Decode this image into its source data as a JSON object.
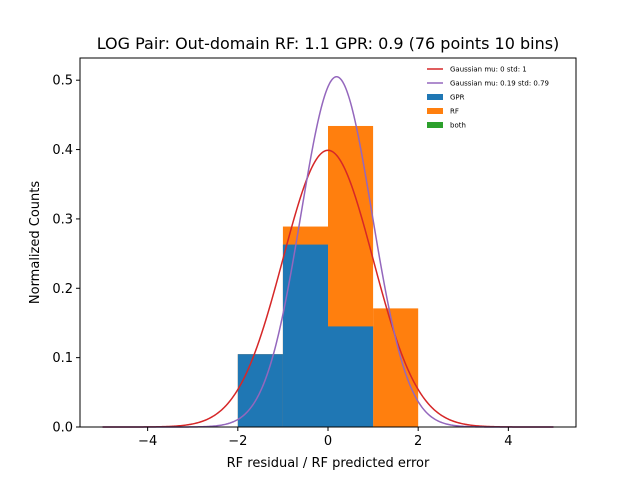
{
  "chart_data": {
    "type": "histogram",
    "title": "LOG Pair: Out-domain RF: 1.1 GPR: 0.9 (76 points 10 bins)",
    "xlabel": "RF residual / RF predicted error",
    "ylabel": "Normalized Counts",
    "xlim": [
      -5.5,
      5.5
    ],
    "ylim": [
      0,
      0.532
    ],
    "xticks": [
      -4,
      -2,
      0,
      2,
      4
    ],
    "xtick_labels": [
      "−4",
      "−2",
      "0",
      "2",
      "4"
    ],
    "yticks": [
      0.0,
      0.1,
      0.2,
      0.3,
      0.4,
      0.5
    ],
    "ytick_labels": [
      "0.0",
      "0.1",
      "0.2",
      "0.3",
      "0.4",
      "0.5"
    ],
    "grid": false,
    "legend_position": "upper-right",
    "histograms": [
      {
        "name": "RF",
        "color": "#ff7f0e",
        "bins": [
          {
            "x0": -2,
            "x1": -1,
            "height": 0.105
          },
          {
            "x0": -1,
            "x1": 0,
            "height": 0.289
          },
          {
            "x0": 0,
            "x1": 1,
            "height": 0.434
          },
          {
            "x0": 1,
            "x1": 2,
            "height": 0.171
          }
        ]
      },
      {
        "name": "GPR",
        "color": "#1f77b4",
        "bins": [
          {
            "x0": -2,
            "x1": -1,
            "height": 0.105
          },
          {
            "x0": -1,
            "x1": 0,
            "height": 0.263
          },
          {
            "x0": 0,
            "x1": 1,
            "height": 0.145
          }
        ]
      }
    ],
    "curves": [
      {
        "name": "Gaussian mu: 0 std: 1",
        "color": "#d62728",
        "mu": 0,
        "std": 1,
        "x_range": [
          -5,
          5
        ]
      },
      {
        "name": "Gaussian mu: 0.19 std: 0.79",
        "color": "#9467bd",
        "mu": 0.19,
        "std": 0.79,
        "x_range": [
          -5,
          5
        ]
      }
    ],
    "legend": [
      {
        "label": "Gaussian mu: 0 std: 1",
        "kind": "line",
        "color": "#d62728"
      },
      {
        "label": "Gaussian mu: 0.19 std: 0.79",
        "kind": "line",
        "color": "#9467bd"
      },
      {
        "label": "GPR",
        "kind": "patch",
        "color": "#1f77b4"
      },
      {
        "label": "RF",
        "kind": "patch",
        "color": "#ff7f0e"
      },
      {
        "label": "both",
        "kind": "patch",
        "color": "#2ca02c"
      }
    ]
  }
}
